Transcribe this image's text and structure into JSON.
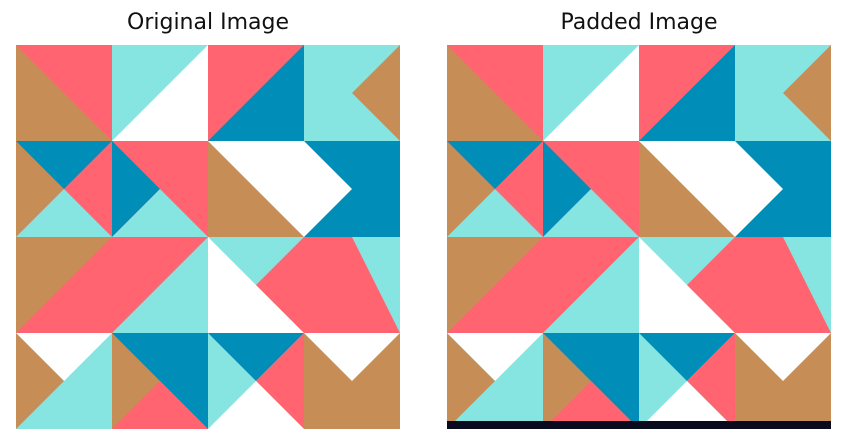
{
  "panels": [
    {
      "key": "original",
      "title": "Original Image"
    },
    {
      "key": "padded",
      "title": "Padded Image"
    }
  ],
  "colors": {
    "red": "#FF6470",
    "cyan": "#86E5E1",
    "white": "#FFFFFF",
    "blue": "#008EB8",
    "tan": "#C68E56",
    "padding": "#0A0A1E"
  },
  "tiles": [
    [
      "tan|red|bl",
      "cyan|white|br",
      "red|blue|br",
      "cyan|tan-notch"
    ],
    [
      "blue-x|tan|red",
      "red|blue-x",
      "white|tan|bl",
      "white-arrow|blue"
    ],
    [
      "tan|red|bl",
      "red|cyan|br",
      "white|cyan|tr",
      "cyan|red|bl"
    ],
    [
      "white|tan-x",
      "tan|blue-x",
      "blue|cyan-x",
      "tan|white-x"
    ]
  ]
}
